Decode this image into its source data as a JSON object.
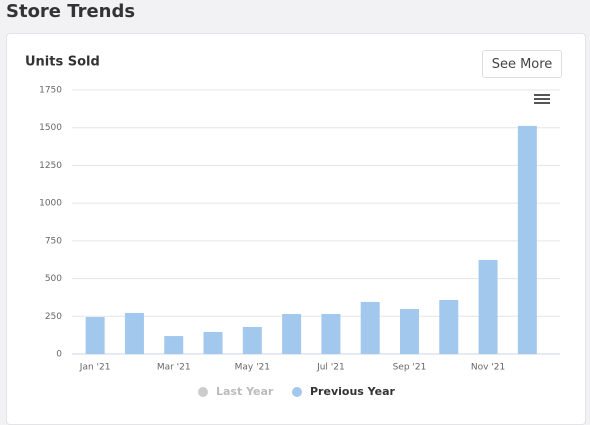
{
  "page": {
    "title": "Store Trends",
    "button": "See More"
  },
  "chart_data": {
    "type": "bar",
    "title": "Units Sold",
    "categories": [
      "Jan '21",
      null,
      "Mar '21",
      null,
      "May '21",
      null,
      "Jul '21",
      null,
      "Sep '21",
      null,
      "Nov '21",
      null
    ],
    "series": [
      {
        "name": "Last Year",
        "color": "#cccccc",
        "visible": false,
        "values": [
          null,
          null,
          null,
          null,
          null,
          null,
          null,
          null,
          null,
          null,
          null,
          null
        ]
      },
      {
        "name": "Previous Year",
        "color": "#a3c8ee",
        "visible": true,
        "values": [
          245,
          272,
          119,
          146,
          179,
          265,
          265,
          345,
          298,
          358,
          623,
          1512
        ]
      }
    ],
    "ylim": [
      0,
      1750
    ],
    "yticks": [
      0,
      250,
      500,
      750,
      1000,
      1250,
      1500,
      1750
    ],
    "grid": true,
    "legend": "bottom"
  }
}
